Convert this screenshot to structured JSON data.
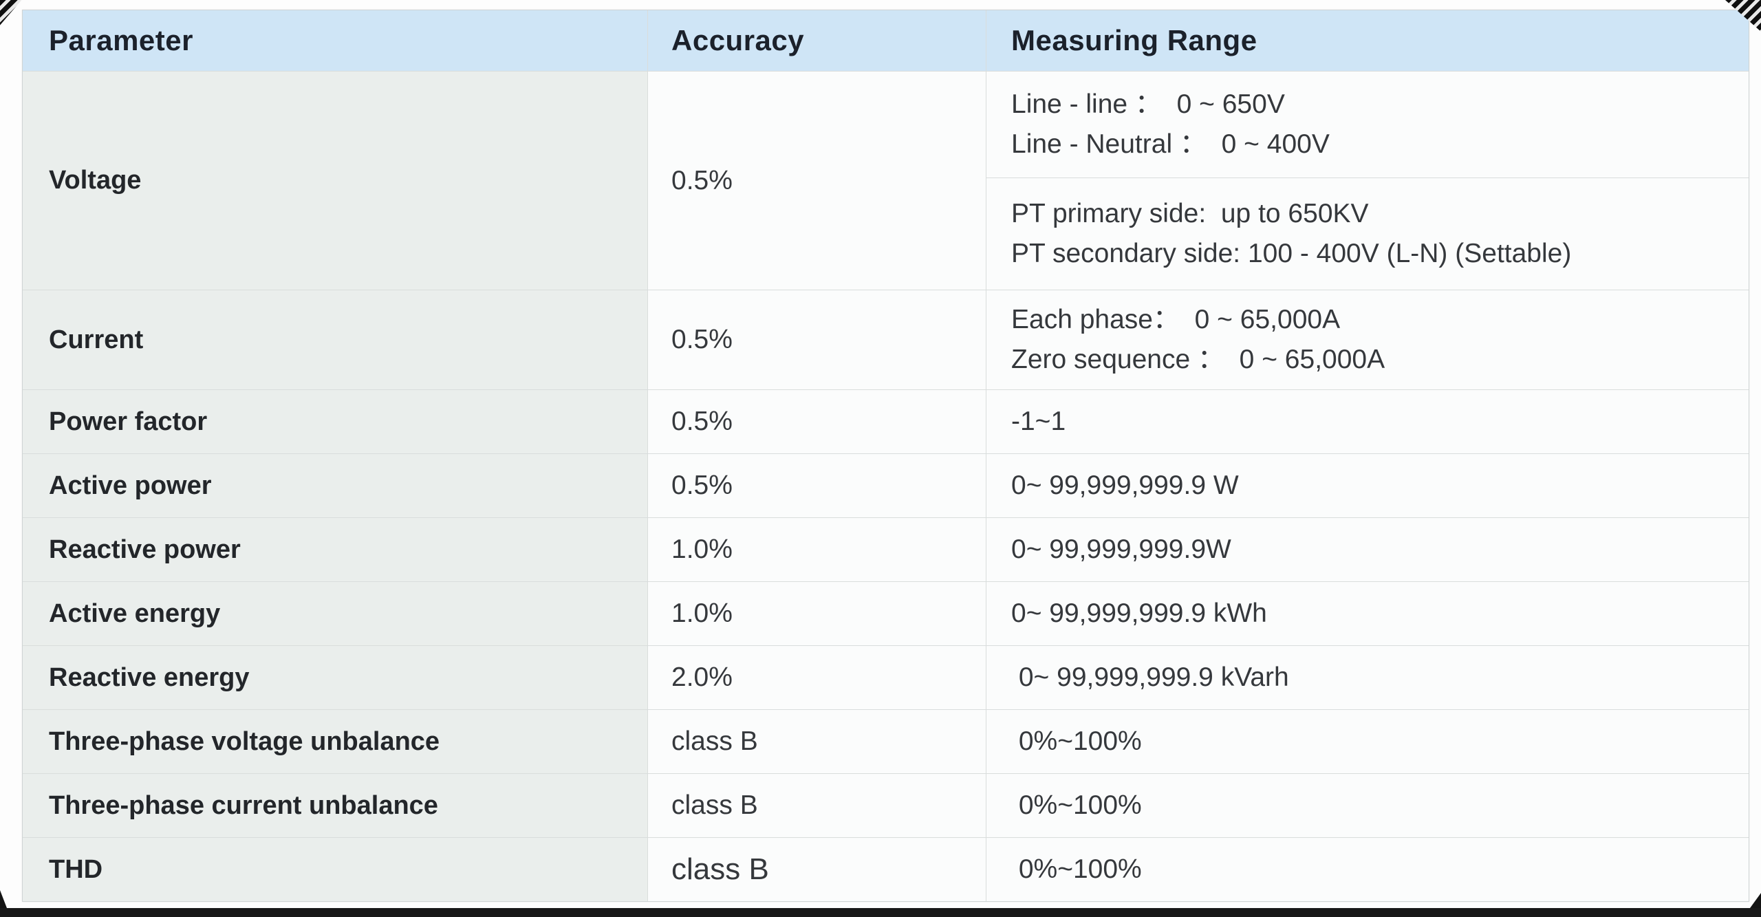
{
  "table": {
    "columns": [
      {
        "label": "Parameter"
      },
      {
        "label": "Accuracy"
      },
      {
        "label": "Measuring Range"
      }
    ],
    "voltage_row": {
      "parameter": "Voltage",
      "accuracy": "0.5%",
      "range_block1": {
        "line1": "Line - line ：  0 ~ 650V",
        "line2": "Line - Neutral ：  0 ~ 400V"
      },
      "range_block2": {
        "line1": "PT primary side:  up to 650KV",
        "line2": "PT secondary side: 100 - 400V (L-N) (Settable)"
      }
    },
    "current_row": {
      "parameter": "Current",
      "accuracy": "0.5%",
      "range_line1": "Each phase：  0 ~ 65,000A",
      "range_line2": "Zero sequence ：  0 ~ 65,000A"
    },
    "simple_rows": [
      {
        "parameter": "Power factor",
        "accuracy": "0.5%",
        "range": "-1~1"
      },
      {
        "parameter": "Active power",
        "accuracy": "0.5%",
        "range": "0~ 99,999,999.9 W"
      },
      {
        "parameter": "Reactive power",
        "accuracy": "1.0%",
        "range": "0~ 99,999,999.9W"
      },
      {
        "parameter": "Active energy",
        "accuracy": "1.0%",
        "range": "0~ 99,999,999.9 kWh"
      },
      {
        "parameter": "Reactive energy",
        "accuracy": "2.0%",
        "range": " 0~ 99,999,999.9 kVarh"
      },
      {
        "parameter": "Three-phase voltage unbalance",
        "accuracy": "class B",
        "range": " 0%~100%"
      },
      {
        "parameter": "Three-phase current unbalance",
        "accuracy": "class B",
        "range": " 0%~100%"
      },
      {
        "parameter": "THD",
        "accuracy": "class B",
        "range": " 0%~100%"
      }
    ],
    "colors": {
      "header_bg": "#cfe5f6",
      "parameter_column_bg": "#eaeeec",
      "cell_bg": "#fbfcfc",
      "grid_line": "#d9dddc",
      "footer_bar": "#181818"
    }
  }
}
